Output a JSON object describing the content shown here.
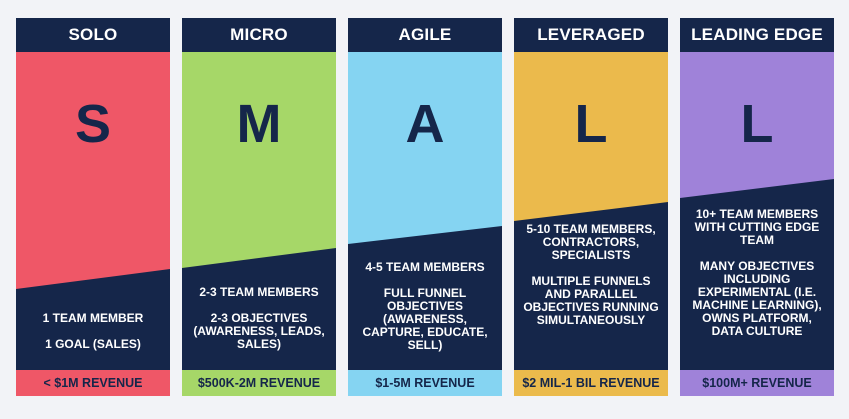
{
  "colors": {
    "navy": "#15264a",
    "solo": "#ef5767",
    "micro": "#a6d768",
    "agile": "#85d4f2",
    "leveraged": "#ebba4c",
    "leading_edge": "#9f82d9"
  },
  "columns": [
    {
      "title": "SOLO",
      "letter": "S",
      "lines": [
        "1 TEAM MEMBER",
        "1 GOAL (SALES)"
      ],
      "revenue": "< $1M REVENUE"
    },
    {
      "title": "MICRO",
      "letter": "M",
      "lines": [
        "2-3 TEAM MEMBERS",
        "2-3 OBJECTIVES (AWARENESS, LEADS, SALES)"
      ],
      "revenue": "$500K-2M REVENUE"
    },
    {
      "title": "AGILE",
      "letter": "A",
      "lines": [
        "4-5 TEAM MEMBERS",
        "FULL FUNNEL OBJECTIVES (AWARENESS, CAPTURE, EDUCATE, SELL)"
      ],
      "revenue": "$1-5M REVENUE"
    },
    {
      "title": "LEVERAGED",
      "letter": "L",
      "lines": [
        "5-10 TEAM MEMBERS, CONTRACTORS, SPECIALISTS",
        "MULTIPLE FUNNELS AND PARALLEL OBJECTIVES RUNNING SIMULTANEOUSLY"
      ],
      "revenue": "$2 MIL-1 BIL REVENUE"
    },
    {
      "title": "LEADING EDGE",
      "letter": "L",
      "lines": [
        "10+ TEAM MEMBERS WITH CUTTING EDGE TEAM",
        "MANY OBJECTIVES INCLUDING EXPERIMENTAL (I.E. MACHINE LEARNING), OWNS PLATFORM, DATA CULTURE"
      ],
      "revenue": "$100M+ REVENUE"
    }
  ]
}
